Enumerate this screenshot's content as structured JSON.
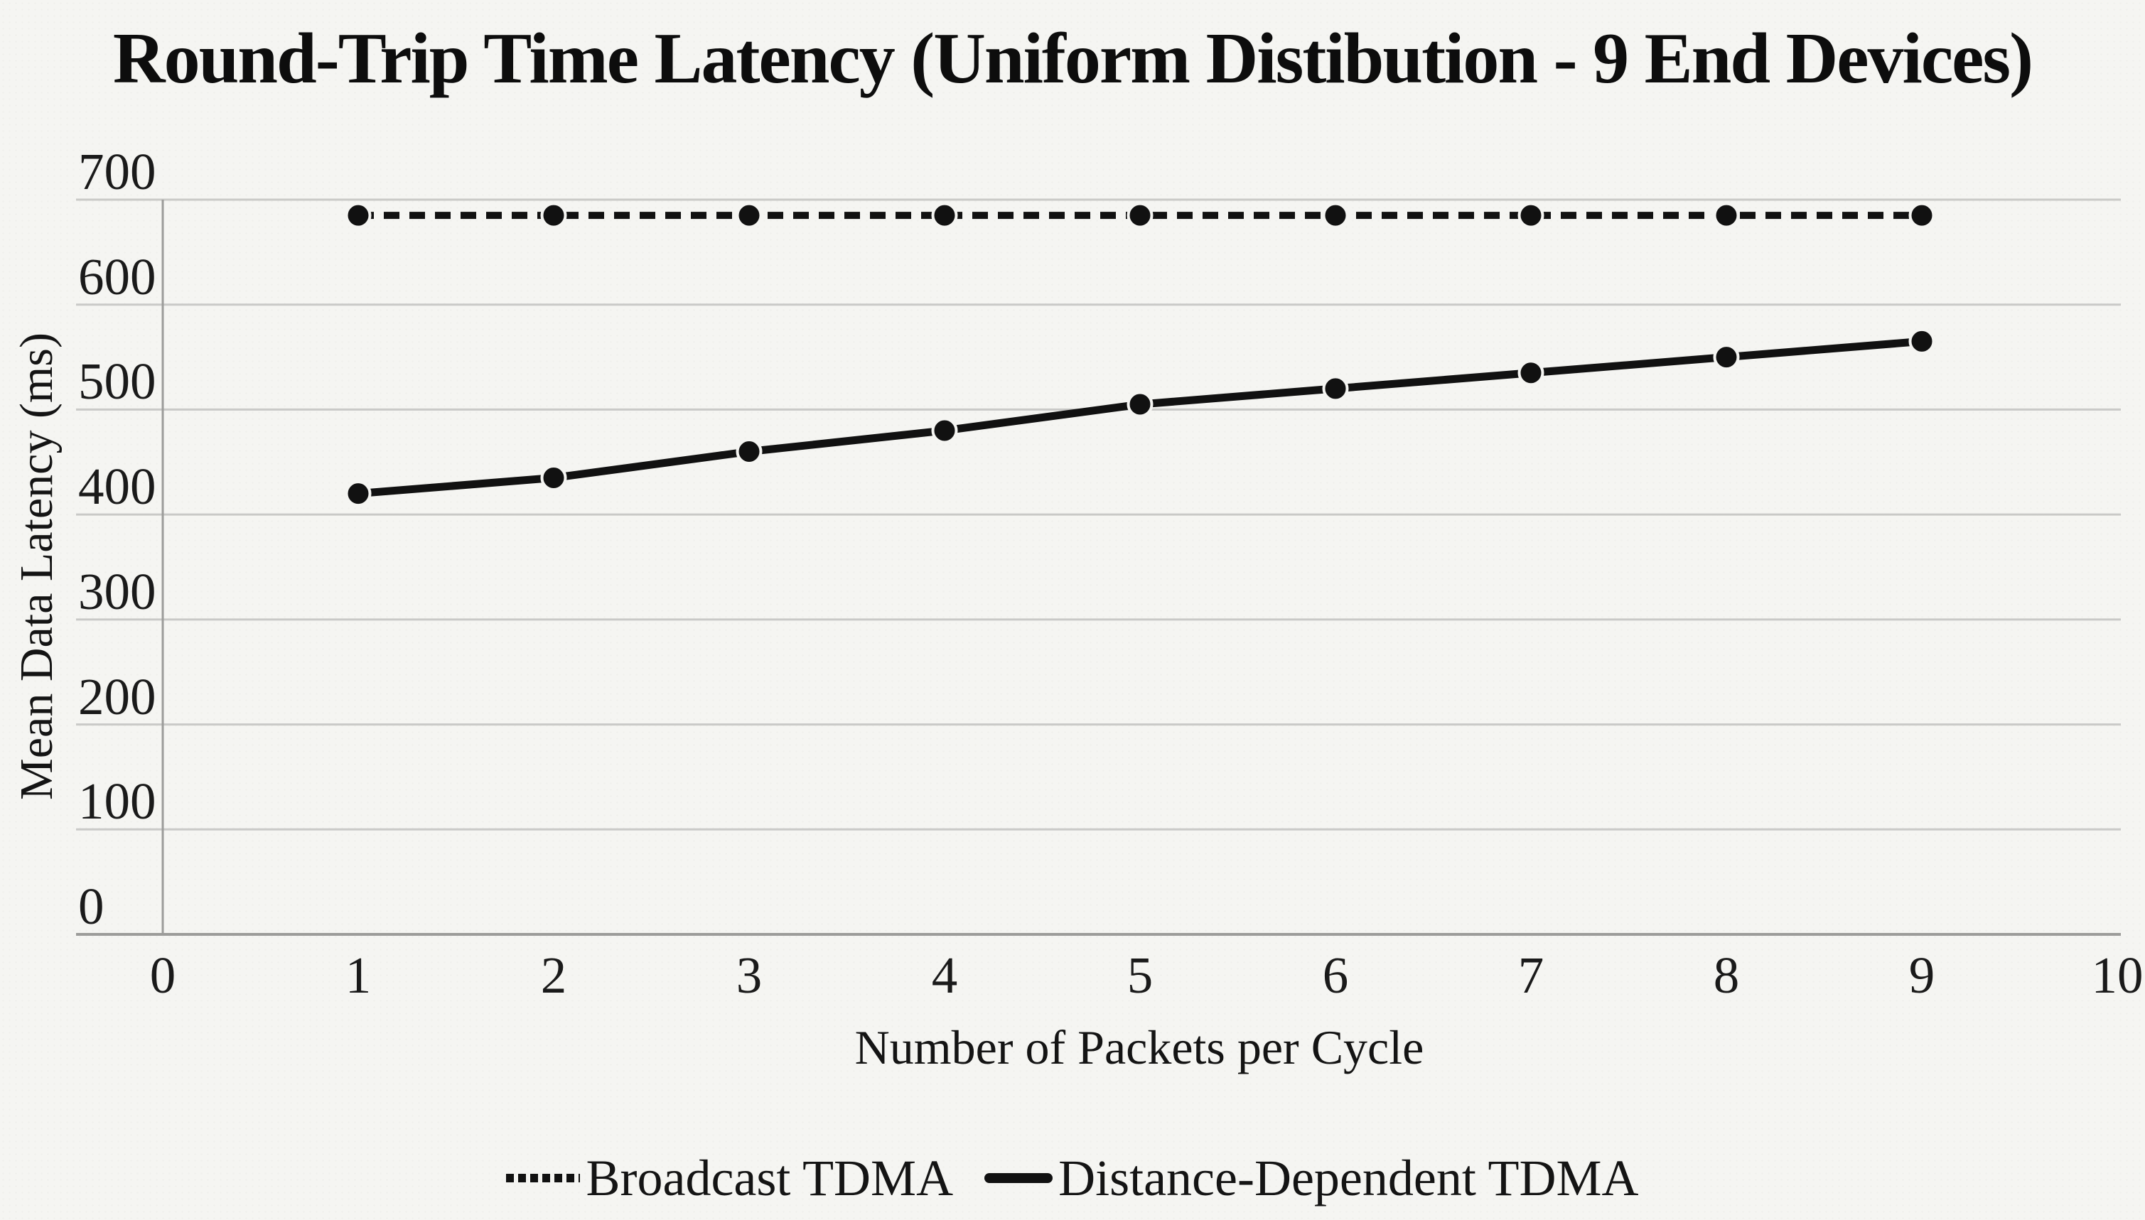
{
  "title": "Round-Trip Time Latency (Uniform Distibution - 9 End Devices)",
  "chart_data": {
    "type": "line",
    "title": "Round-Trip Time Latency (Uniform Distibution - 9 End Devices)",
    "xlabel": "Number of Packets per Cycle",
    "ylabel": "Mean Data Latency (ms)",
    "xlim": [
      0,
      10
    ],
    "ylim": [
      0,
      700
    ],
    "x_ticks": [
      0,
      1,
      2,
      3,
      4,
      5,
      6,
      7,
      8,
      9,
      10
    ],
    "y_ticks": [
      0,
      100,
      200,
      300,
      400,
      500,
      600,
      700
    ],
    "x": [
      1,
      2,
      3,
      4,
      5,
      6,
      7,
      8,
      9
    ],
    "series": [
      {
        "name": "Broadcast TDMA",
        "line_style": "dotted",
        "marker": "circle",
        "color": "#111111",
        "values": [
          685,
          685,
          685,
          685,
          685,
          685,
          685,
          685,
          685
        ]
      },
      {
        "name": "Distance-Dependent TDMA",
        "line_style": "solid",
        "marker": "circle",
        "color": "#111111",
        "values": [
          420,
          435,
          460,
          480,
          505,
          520,
          535,
          550,
          565
        ]
      }
    ],
    "grid": "horizontal",
    "legend_position": "bottom-center",
    "colors": {
      "background": "#f5f5f2",
      "text": "#1a1a1a",
      "gridline": "#c9c9c7",
      "axis": "#9c9c9a"
    }
  }
}
